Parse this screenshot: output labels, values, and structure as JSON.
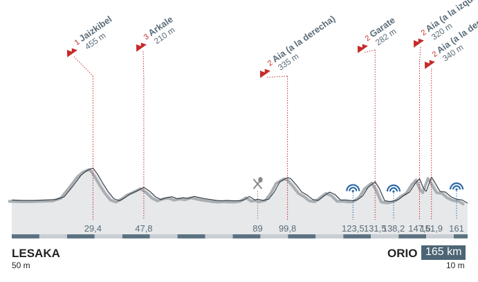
{
  "route": {
    "start": {
      "name": "LESAKA",
      "elevation": "50 m"
    },
    "finish": {
      "name": "ORIO",
      "elevation": "10 m",
      "distance_label": "165 km"
    }
  },
  "colors": {
    "profile_fill": "#e6e8ea",
    "profile_shadow": "#a9aeb2",
    "profile_line": "#2d3a44",
    "climb_red": "#c62a2a",
    "label_slate": "#5b6c78",
    "sprint_blue": "#2b6aa4",
    "km_dark": "#5d7382",
    "km_light": "#c8ced3",
    "feed_gray": "#888888"
  },
  "chart_data": {
    "type": "area",
    "title": "",
    "xlabel": "",
    "ylabel": "",
    "x_unit": "km",
    "y_unit": "m",
    "xlim": [
      0,
      165
    ],
    "ylim": [
      0,
      600
    ],
    "series": [
      {
        "x": [
          0,
          4,
          8,
          12,
          16,
          19,
          22,
          25,
          27,
          29.4,
          31,
          33,
          35,
          37,
          39,
          41,
          43,
          45,
          47.8,
          50,
          52,
          54,
          56,
          58,
          60,
          62,
          64,
          66,
          68,
          70,
          72,
          74,
          76,
          78,
          80,
          82,
          84,
          86,
          88,
          89,
          91,
          93,
          95,
          97,
          99.8,
          101,
          103,
          105,
          107,
          109,
          111,
          113,
          115,
          117,
          119,
          121,
          123.5,
          125,
          127,
          129,
          131.5,
          133,
          135,
          137,
          138.2,
          140,
          142,
          144,
          146,
          147.6,
          149,
          150,
          151.9,
          153,
          155,
          157,
          159,
          161,
          163,
          165
        ],
        "y": [
          50,
          45,
          45,
          50,
          55,
          90,
          220,
          360,
          420,
          455,
          380,
          260,
          150,
          65,
          40,
          80,
          130,
          160,
          210,
          160,
          90,
          55,
          80,
          90,
          65,
          80,
          70,
          95,
          80,
          65,
          55,
          45,
          40,
          45,
          40,
          40,
          50,
          95,
          50,
          60,
          45,
          60,
          150,
          280,
          335,
          320,
          240,
          150,
          110,
          55,
          45,
          100,
          150,
          120,
          50,
          50,
          40,
          50,
          100,
          210,
          282,
          200,
          40,
          30,
          35,
          55,
          110,
          150,
          260,
          320,
          200,
          160,
          340,
          280,
          160,
          150,
          90,
          60,
          50,
          10
        ]
      }
    ],
    "climbs": [
      {
        "name": "Jaizkibel",
        "elevation": "455 m",
        "category": "1",
        "km": 29.4
      },
      {
        "name": "Arkale",
        "elevation": "210 m",
        "category": "3",
        "km": 47.8
      },
      {
        "name": "Aia (a la derecha)",
        "elevation": "335 m",
        "category": "2",
        "km": 99.8
      },
      {
        "name": "Garate",
        "elevation": "282 m",
        "category": "2",
        "km": 131.5
      },
      {
        "name": "Aia (a la izquierda)",
        "elevation": "320 m",
        "category": "2",
        "km": 147.6
      },
      {
        "name": "Aia (a la derecha)",
        "elevation": "340 m",
        "category": "2",
        "km": 151.9
      }
    ],
    "markers": [
      {
        "km": 29.4,
        "label": "29,4",
        "type": "climb"
      },
      {
        "km": 47.8,
        "label": "47,8",
        "type": "climb"
      },
      {
        "km": 89,
        "label": "89",
        "type": "feed"
      },
      {
        "km": 99.8,
        "label": "99,8",
        "type": "climb"
      },
      {
        "km": 123.5,
        "label": "123,5",
        "type": "sprint"
      },
      {
        "km": 131.5,
        "label": "131,5",
        "type": "climb"
      },
      {
        "km": 138.2,
        "label": "138,2",
        "type": "sprint"
      },
      {
        "km": 147.6,
        "label": "147,6",
        "type": "climb"
      },
      {
        "km": 151.9,
        "label": "151,9",
        "type": "climb"
      },
      {
        "km": 161,
        "label": "161",
        "type": "sprint"
      }
    ],
    "km_bar_segment_km": 10,
    "grid": false
  }
}
